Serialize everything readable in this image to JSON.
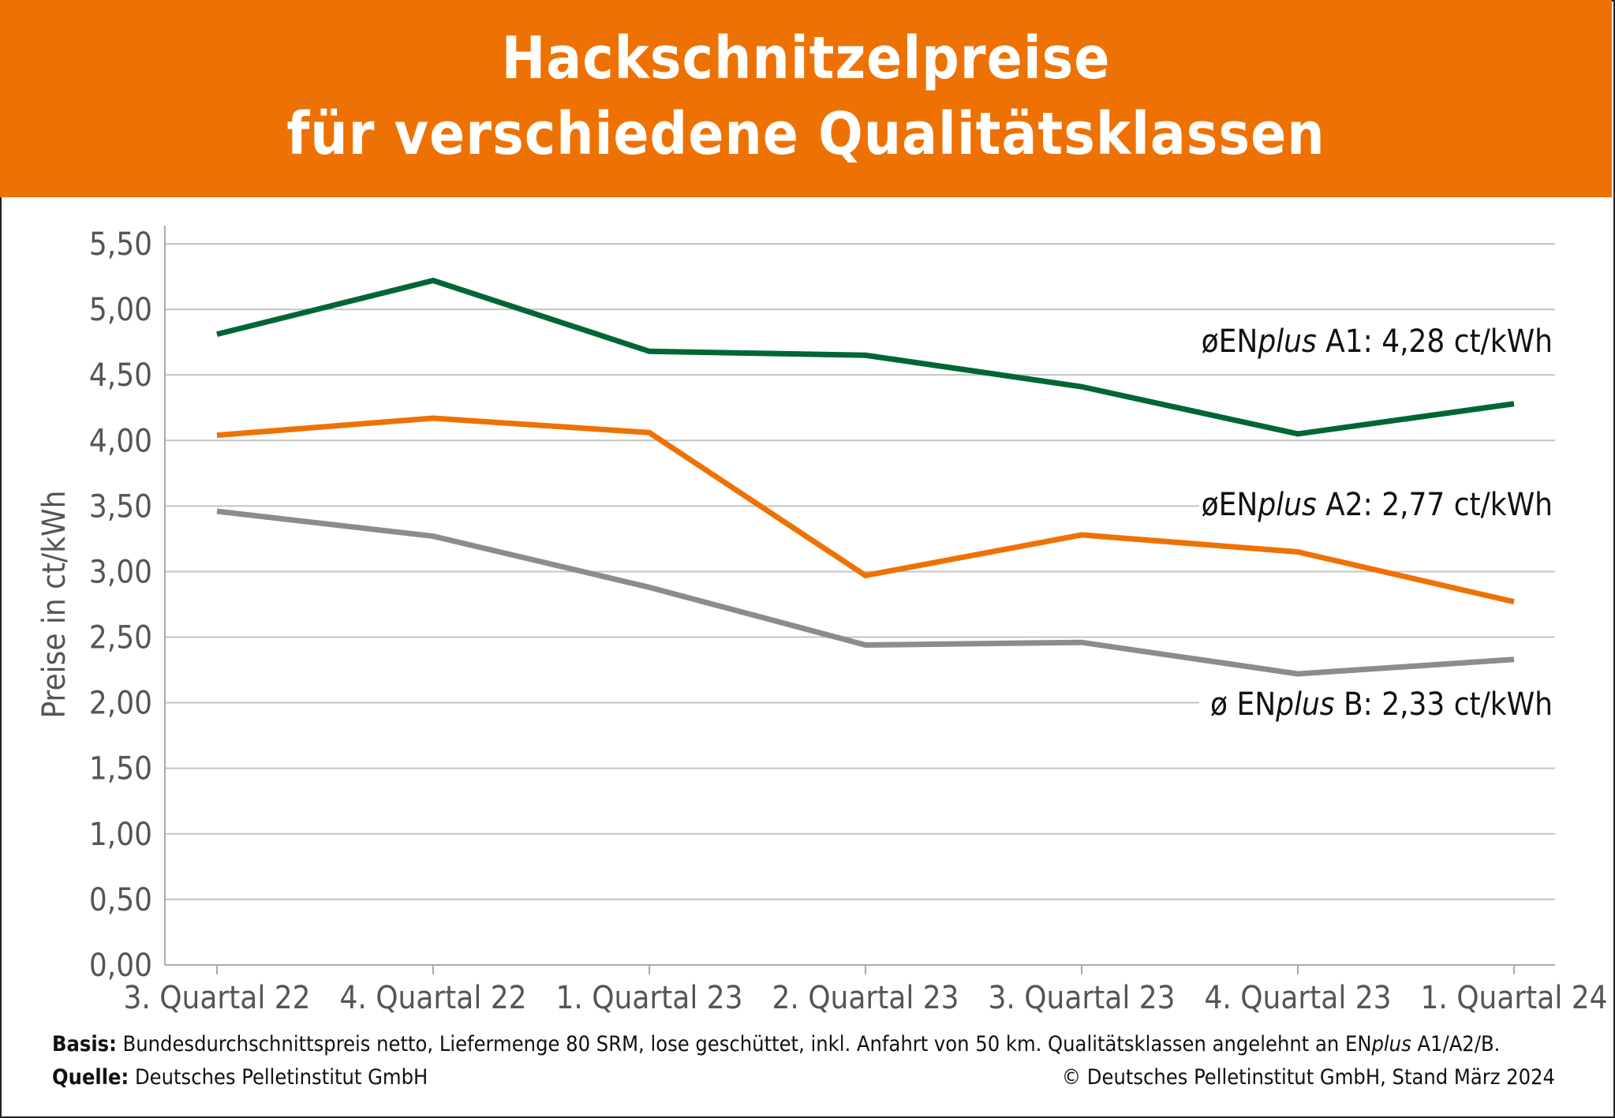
{
  "chart_data": {
    "type": "line",
    "title": "Hackschnitzelpreise",
    "subtitle": "für verschiedene Qualitätsklassen",
    "ylabel": "Preise in ct/kWh",
    "xlabel": "",
    "ylim": [
      0,
      5.5
    ],
    "yticks": [
      "0,00",
      "0,50",
      "1,00",
      "1,50",
      "2,00",
      "2,50",
      "3,00",
      "3,50",
      "4,00",
      "4,50",
      "5,00",
      "5,50"
    ],
    "categories": [
      "3. Quartal 22",
      "4. Quartal 22",
      "1. Quartal 23",
      "2. Quartal 23",
      "3. Quartal 23",
      "4. Quartal 23",
      "1. Quartal 24"
    ],
    "grid": true,
    "series": [
      {
        "key": "a1",
        "color": "#006633",
        "values": [
          4.81,
          5.22,
          4.68,
          4.65,
          4.41,
          4.05,
          4.28
        ],
        "label": {
          "prefix": "øEN",
          "italic": "plus",
          "suffix": " A1: 4,28 ct/kWh"
        }
      },
      {
        "key": "a2",
        "color": "#ee7203",
        "values": [
          4.04,
          4.17,
          4.06,
          2.97,
          3.28,
          3.15,
          2.77
        ],
        "label": {
          "prefix": "øEN",
          "italic": "plus",
          "suffix": " A2: 2,77 ct/kWh"
        }
      },
      {
        "key": "b",
        "color": "#8c8c8c",
        "values": [
          3.46,
          3.27,
          2.88,
          2.44,
          2.46,
          2.22,
          2.33
        ],
        "label": {
          "prefix": "ø EN",
          "italic": "plus",
          "suffix": " B: 2,33 ct/kWh"
        }
      }
    ]
  },
  "footer": {
    "basis_label": "Basis:",
    "basis_text": " Bundesdurchschnittspreis netto, Liefermenge 80 SRM, lose geschüttet, inkl. Anfahrt von 50 km. Qualitätsklassen angelehnt an EN",
    "basis_italic": "plus",
    "basis_end": " A1/A2/B.",
    "source_label": "Quelle:",
    "source_text": " Deutsches Pelletinstitut GmbH",
    "copyright": "© Deutsches Pelletinstitut GmbH, Stand März 2024"
  }
}
